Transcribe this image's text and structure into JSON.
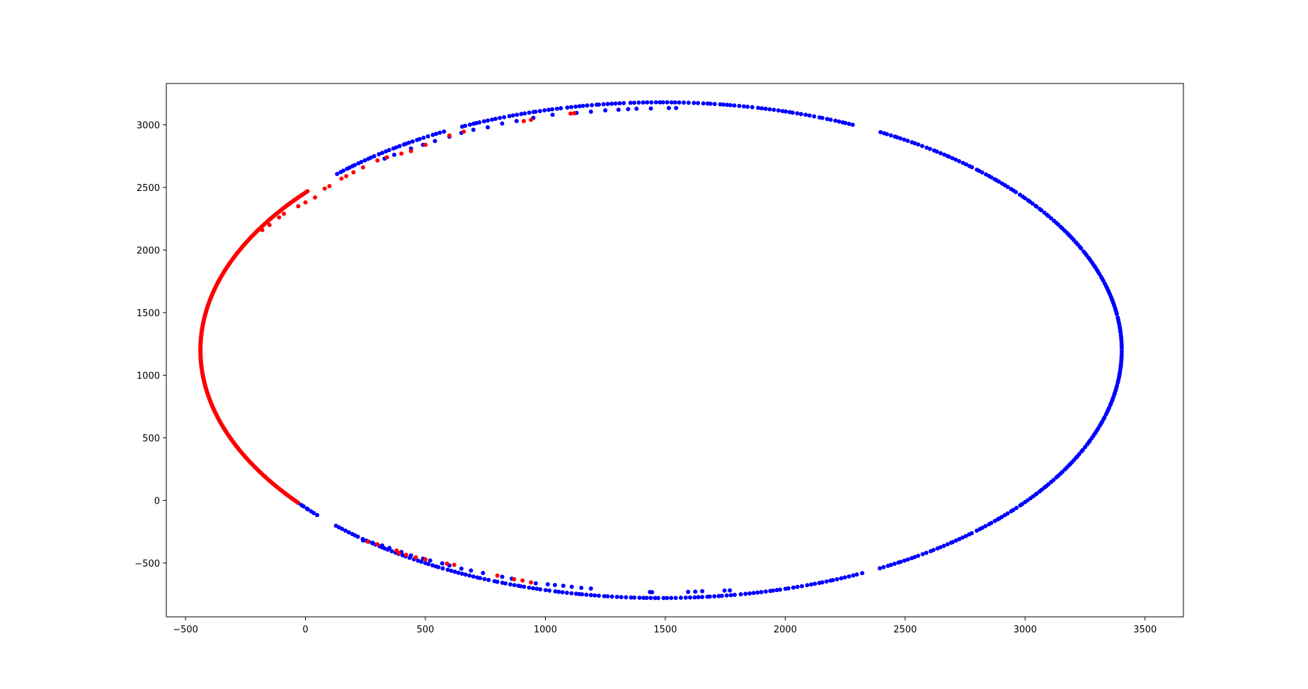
{
  "chart_data": {
    "type": "scatter",
    "xlim": [
      -580,
      3660
    ],
    "ylim": [
      -930,
      3330
    ],
    "x_ticks": [
      -500,
      0,
      500,
      1000,
      1500,
      2000,
      2500,
      3000,
      3500
    ],
    "y_ticks": [
      -500,
      0,
      500,
      1000,
      1500,
      2000,
      2500,
      3000
    ],
    "x_tick_labels": [
      "−500",
      "0",
      "500",
      "1000",
      "1500",
      "2000",
      "2500",
      "3000",
      "3500"
    ],
    "y_tick_labels": [
      "−500",
      "0",
      "500",
      "1000",
      "1500",
      "2000",
      "2500",
      "3000"
    ],
    "grid": false,
    "series": [
      {
        "color": "#0000ff",
        "ellipse_samples": {
          "center": [
            1500,
            1200
          ],
          "semi_axes": [
            1930,
            1930
          ],
          "y_semi_axis": 1930,
          "angle_ranges_deg": [
            [
              -62,
              62
            ],
            [
              65,
              116
            ],
            [
              -118,
              -64
            ],
            [
              118,
              135
            ],
            [
              -135,
              -118
            ],
            [
              -146,
              -138
            ],
            [
              140,
              145
            ]
          ],
          "count": 520
        },
        "points": [
          [
            1445,
            -733
          ],
          [
            1436,
            -732
          ],
          [
            1595,
            -731
          ],
          [
            1625,
            -729
          ],
          [
            1654,
            -725
          ],
          [
            1747,
            -720
          ],
          [
            1769,
            -719
          ],
          [
            1190,
            -704
          ],
          [
            1150,
            -698
          ],
          [
            1110,
            -690
          ],
          [
            1075,
            -682
          ],
          [
            1040,
            -676
          ],
          [
            1010,
            -670
          ],
          [
            960,
            -662
          ],
          [
            860,
            -625
          ],
          [
            820,
            -610
          ],
          [
            740,
            -580
          ],
          [
            690,
            -560
          ],
          [
            650,
            -545
          ],
          [
            600,
            -520
          ],
          [
            570,
            -503
          ],
          [
            520,
            -480
          ],
          [
            490,
            -465
          ],
          [
            440,
            -440
          ],
          [
            400,
            -412
          ],
          [
            350,
            -380
          ],
          [
            320,
            -360
          ],
          [
            280,
            -338
          ],
          [
            240,
            -320
          ],
          [
            1030,
            3080
          ],
          [
            950,
            3055
          ],
          [
            880,
            3030
          ],
          [
            820,
            3010
          ],
          [
            760,
            2980
          ],
          [
            700,
            2960
          ],
          [
            650,
            2935
          ],
          [
            600,
            2905
          ],
          [
            540,
            2870
          ],
          [
            490,
            2840
          ],
          [
            440,
            2810
          ],
          [
            370,
            2760
          ],
          [
            330,
            2730
          ],
          [
            1130,
            3095
          ],
          [
            1190,
            3105
          ],
          [
            1250,
            3115
          ],
          [
            1305,
            3120
          ],
          [
            1345,
            3125
          ],
          [
            1380,
            3128
          ],
          [
            1440,
            3130
          ],
          [
            1515,
            3134
          ],
          [
            1545,
            3134
          ]
        ]
      },
      {
        "color": "#ff0000",
        "ellipse_samples": {
          "center": [
            1500,
            1200
          ],
          "semi_axes": [
            1930,
            1930
          ],
          "angle_ranges_deg": [
            [
              152,
              208
            ],
            [
              140,
              152
            ],
            [
              208,
              218
            ]
          ],
          "count": 300
        },
        "points": [
          [
            940,
            -655
          ],
          [
            905,
            -640
          ],
          [
            870,
            -630
          ],
          [
            800,
            -600
          ],
          [
            620,
            -515
          ],
          [
            590,
            -505
          ],
          [
            500,
            -470
          ],
          [
            460,
            -455
          ],
          [
            420,
            -435
          ],
          [
            390,
            -420
          ],
          [
            380,
            -400
          ],
          [
            300,
            -350
          ],
          [
            260,
            -330
          ],
          [
            940,
            3040
          ],
          [
            910,
            3030
          ],
          [
            1105,
            3090
          ],
          [
            1120,
            3092
          ],
          [
            660,
            2945
          ],
          [
            600,
            2915
          ],
          [
            500,
            2840
          ],
          [
            440,
            2790
          ],
          [
            400,
            2770
          ],
          [
            340,
            2740
          ],
          [
            300,
            2715
          ],
          [
            240,
            2660
          ],
          [
            200,
            2620
          ],
          [
            170,
            2590
          ],
          [
            150,
            2570
          ],
          [
            100,
            2510
          ],
          [
            80,
            2490
          ],
          [
            40,
            2420
          ],
          [
            0,
            2380
          ],
          [
            -30,
            2350
          ],
          [
            -90,
            2290
          ],
          [
            -110,
            2260
          ],
          [
            -150,
            2200
          ],
          [
            -180,
            2160
          ]
        ]
      }
    ]
  }
}
